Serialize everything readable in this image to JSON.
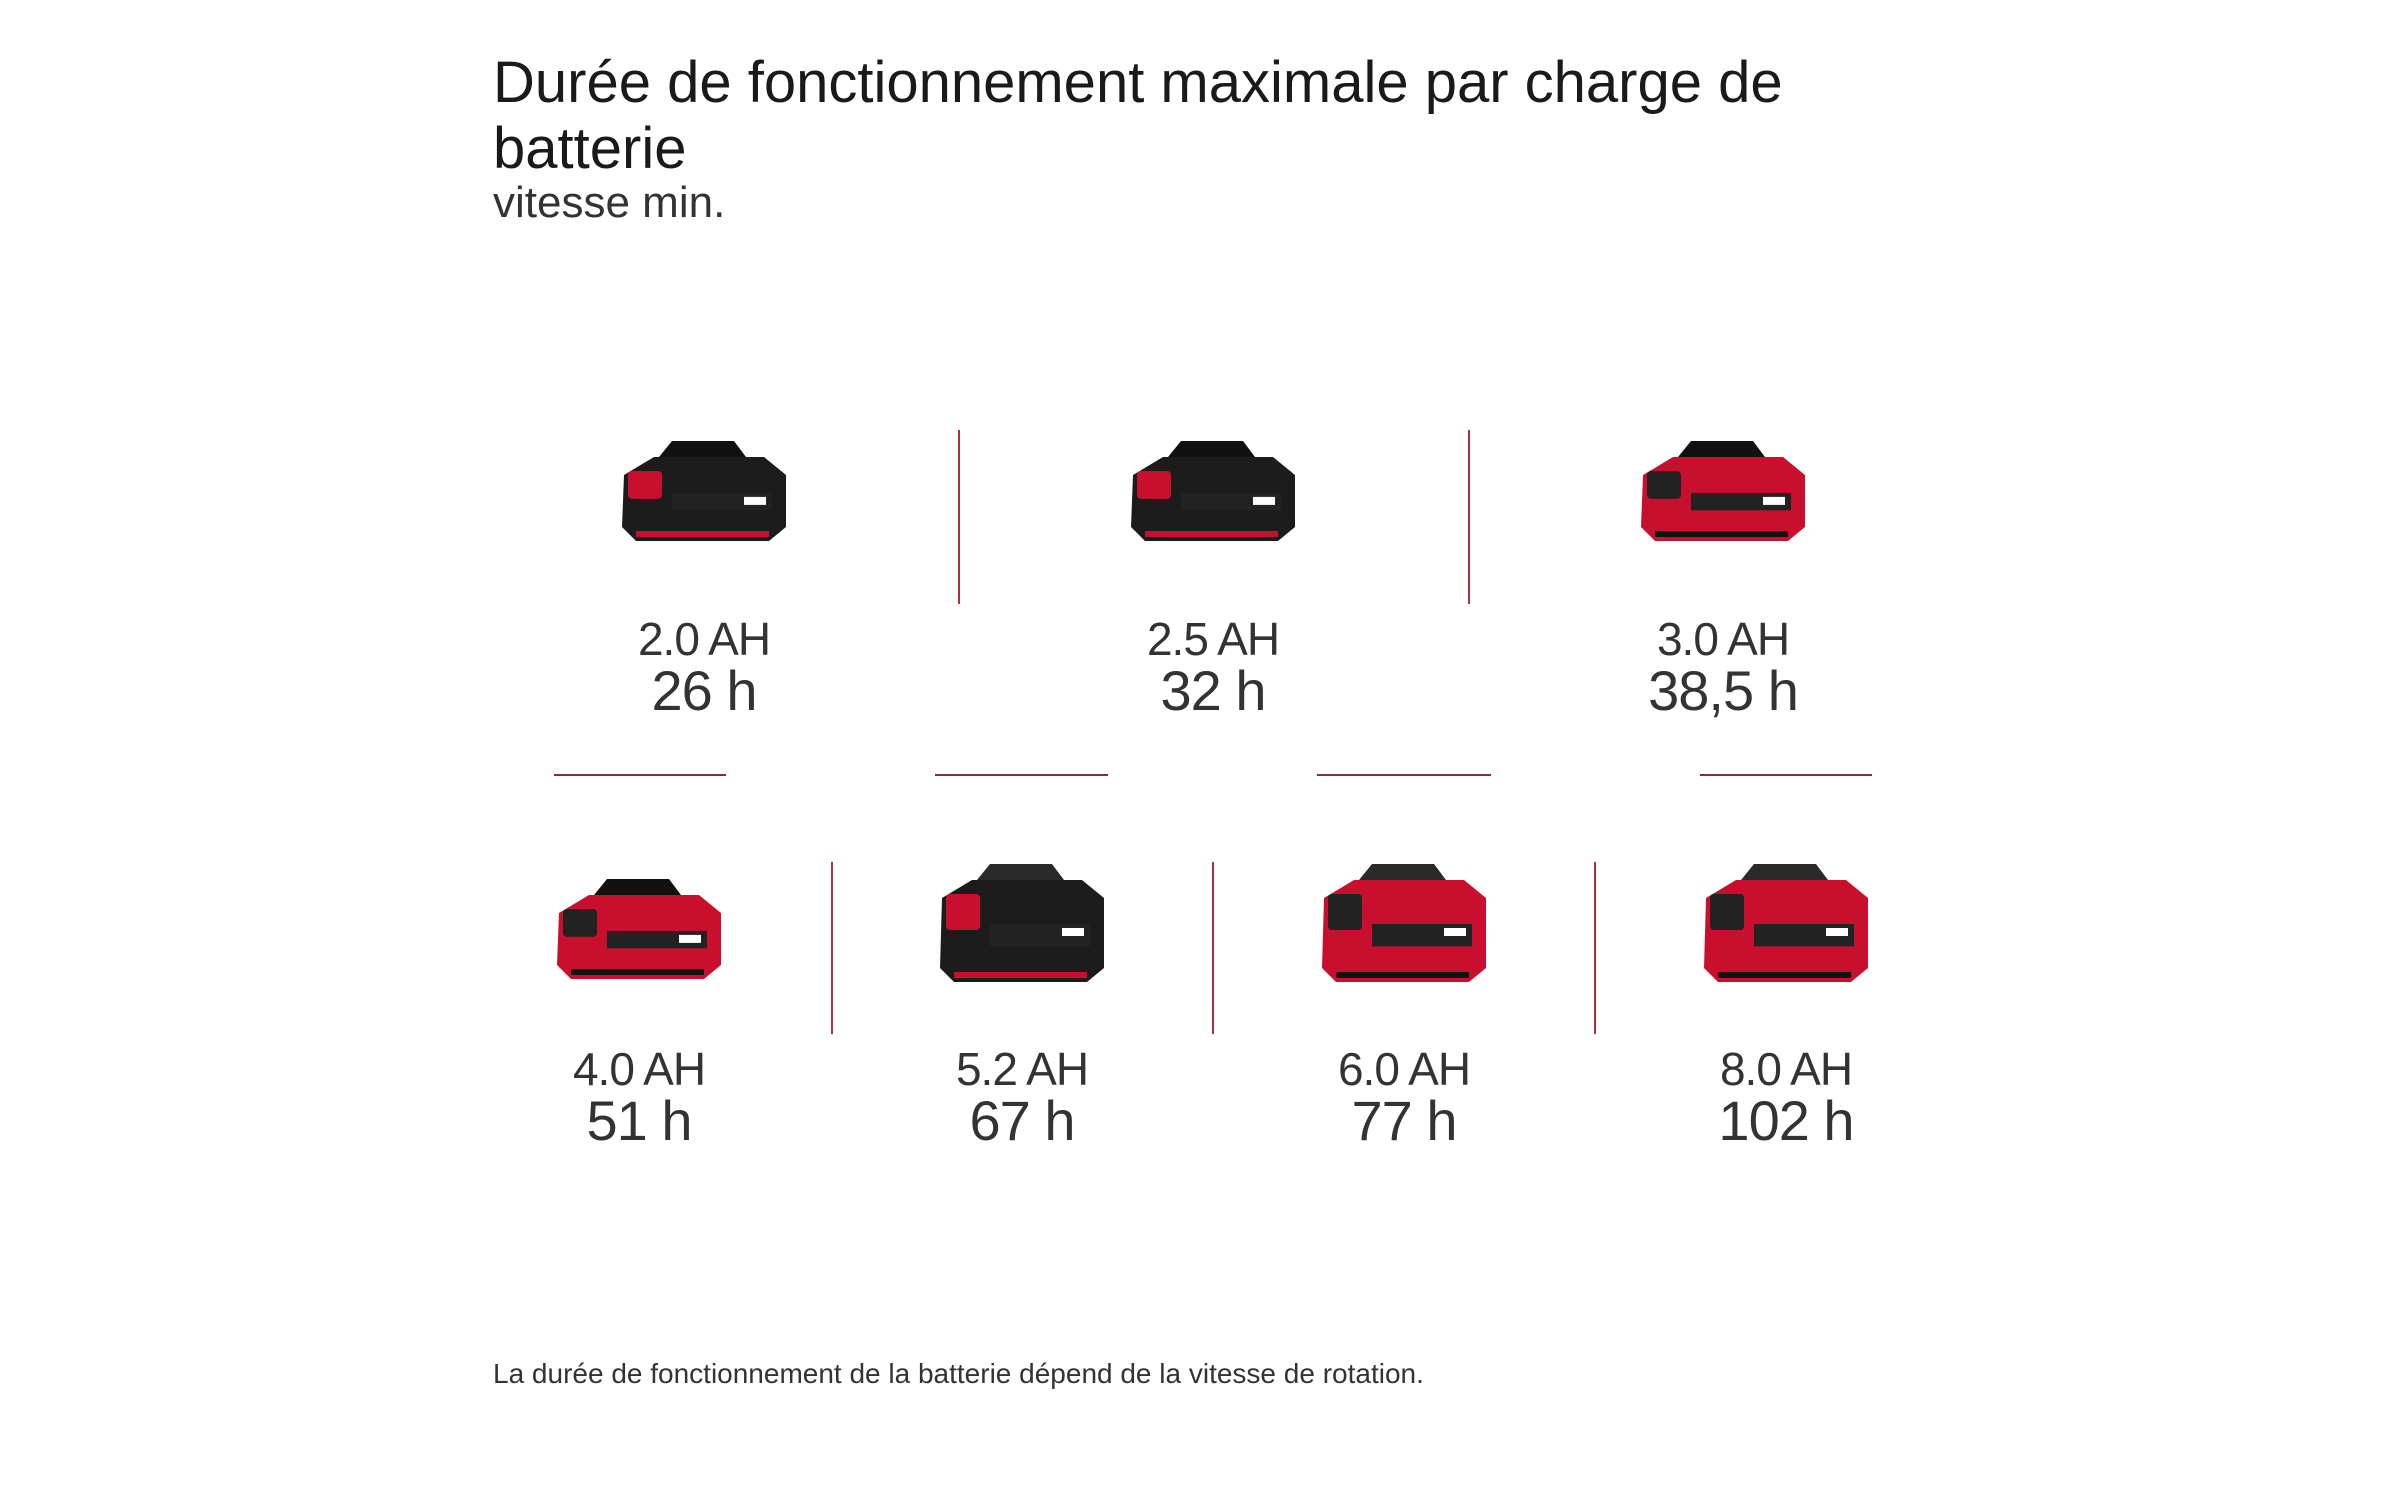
{
  "header": {
    "title": "Durée de fonctionnement maximale par charge de batterie",
    "subtitle": "vitesse min."
  },
  "batteries": [
    {
      "capacity": "2.0 AH",
      "runtime": "26 h",
      "style": "black-compact"
    },
    {
      "capacity": "2.5 AH",
      "runtime": "32 h",
      "style": "black-compact"
    },
    {
      "capacity": "3.0 AH",
      "runtime": "38,5 h",
      "style": "red-compact"
    },
    {
      "capacity": "4.0 AH",
      "runtime": "51 h",
      "style": "red-compact"
    },
    {
      "capacity": "5.2 AH",
      "runtime": "67 h",
      "style": "black-large"
    },
    {
      "capacity": "6.0 AH",
      "runtime": "77 h",
      "style": "red-large"
    },
    {
      "capacity": "8.0 AH",
      "runtime": "102 h",
      "style": "red-large"
    }
  ],
  "footer": {
    "note": "La durée de fonctionnement de la batterie dépend de la vitesse de rotation."
  },
  "colors": {
    "accent": "#c8102e",
    "divider": "#a83240",
    "battery_dark": "#1c1c1c"
  }
}
